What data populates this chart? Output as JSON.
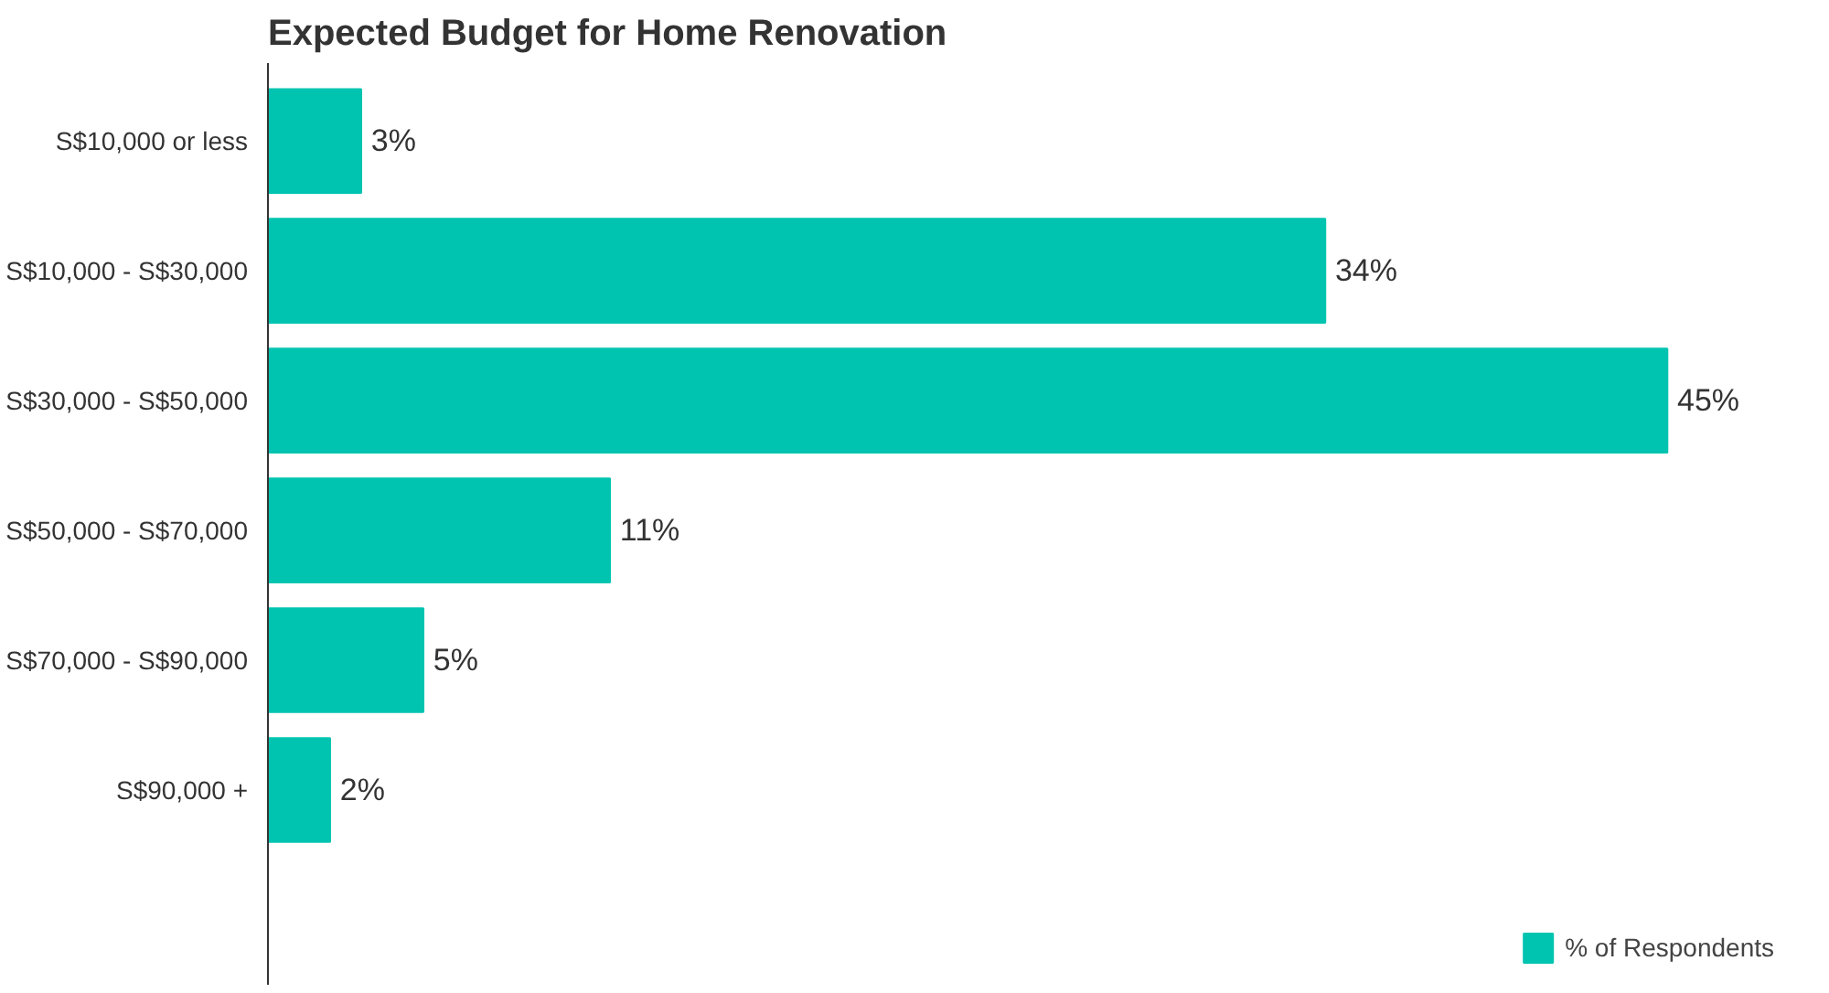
{
  "chart_data": {
    "type": "bar",
    "orientation": "horizontal",
    "title": "Expected Budget for Home Renovation",
    "categories": [
      "S$10,000 or less",
      "S$10,000 - S$30,000",
      "S$30,000 - S$50,000",
      "S$50,000 - S$70,000",
      "S$70,000 - S$90,000",
      "S$90,000 +"
    ],
    "series": [
      {
        "name": "% of Respondents",
        "color": "#00c4b0",
        "values": [
          3,
          34,
          45,
          11,
          5,
          2
        ],
        "value_labels": [
          "3%",
          "34%",
          "45%",
          "11%",
          "5%",
          "2%"
        ]
      }
    ],
    "grid": false,
    "legend": "bottom right",
    "tick_labels": "y"
  }
}
